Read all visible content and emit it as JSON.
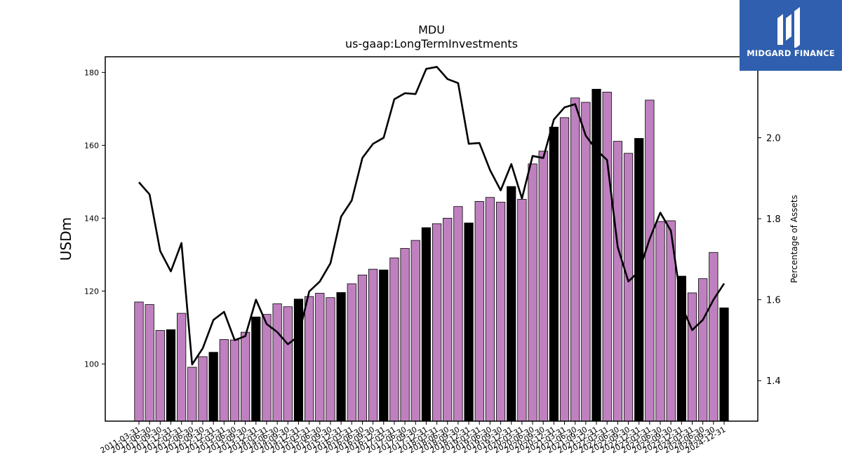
{
  "chart_data": {
    "type": "bar",
    "title": "MDU",
    "subtitle": "us-gaap:LongTermInvestments",
    "ylabel": "USDm",
    "y2label": "Percentage of Assets",
    "ylim": [
      84.3,
      184.3
    ],
    "y2lim": [
      1.3,
      2.2
    ],
    "yticks": [
      100,
      120,
      140,
      160,
      180
    ],
    "y2ticks": [
      1.4,
      1.6,
      1.8,
      2.0
    ],
    "grid": false,
    "colors": {
      "bar_default": "#bf80bf",
      "bar_q4": "#000000",
      "line": "#000000"
    },
    "categories": [
      "2011-03-31",
      "2011-06-30",
      "2011-09-30",
      "2011-12-31",
      "2012-03-31",
      "2012-06-30",
      "2012-09-30",
      "2012-12-31",
      "2013-03-31",
      "2013-06-30",
      "2013-09-30",
      "2013-12-31",
      "2014-03-31",
      "2014-06-30",
      "2014-09-30",
      "2014-12-31",
      "2015-03-31",
      "2015-06-30",
      "2015-09-30",
      "2015-12-31",
      "2016-03-31",
      "2016-06-30",
      "2016-09-30",
      "2016-12-31",
      "2017-03-31",
      "2017-06-30",
      "2017-09-30",
      "2017-12-31",
      "2018-03-31",
      "2018-06-30",
      "2018-09-30",
      "2018-12-31",
      "2019-03-31",
      "2019-06-30",
      "2019-09-30",
      "2019-12-31",
      "2020-03-31",
      "2020-06-30",
      "2020-09-30",
      "2020-12-31",
      "2021-03-31",
      "2021-06-30",
      "2021-09-30",
      "2021-12-31",
      "2022-03-31",
      "2022-06-30",
      "2022-09-30",
      "2022-12-31",
      "2023-03-31",
      "2023-06-30",
      "2023-09-30",
      "2023-12-31",
      "2024-03-31",
      "2024-06-30",
      "2024-09-30",
      "2024-12-31"
    ],
    "series": [
      {
        "type": "bar",
        "axis": "left",
        "values": [
          117.0,
          116.3,
          109.2,
          109.4,
          113.9,
          99.1,
          102.0,
          103.2,
          106.7,
          106.6,
          108.7,
          112.9,
          113.6,
          116.5,
          115.7,
          117.8,
          118.5,
          119.4,
          118.2,
          119.6,
          122.0,
          124.4,
          126.0,
          125.8,
          129.1,
          131.7,
          133.9,
          137.4,
          138.5,
          140.0,
          143.2,
          138.7,
          144.6,
          145.7,
          144.4,
          148.7,
          145.2,
          154.9,
          158.4,
          165.0,
          167.6,
          173.0,
          171.8,
          175.4,
          174.6,
          161.1,
          157.8,
          161.9,
          172.4,
          139.1,
          139.3,
          124.1,
          119.5,
          123.4,
          130.6,
          115.4
        ]
      },
      {
        "type": "line",
        "axis": "right",
        "values": [
          1.89,
          1.86,
          1.72,
          1.67,
          1.74,
          1.44,
          1.48,
          1.55,
          1.57,
          1.5,
          1.51,
          1.6,
          1.54,
          1.52,
          1.49,
          1.51,
          1.62,
          1.645,
          1.69,
          1.805,
          1.845,
          1.95,
          1.985,
          2.0,
          2.095,
          2.11,
          2.108,
          2.17,
          2.175,
          2.145,
          2.135,
          1.985,
          1.987,
          1.92,
          1.87,
          1.935,
          1.85,
          1.955,
          1.95,
          2.045,
          2.075,
          2.083,
          2.005,
          1.97,
          1.945,
          1.73,
          1.645,
          1.67,
          1.75,
          1.815,
          1.77,
          1.585,
          1.525,
          1.55,
          1.6,
          1.64
        ]
      }
    ]
  },
  "logo": {
    "text": "MIDGARD FINANCE",
    "icon": "midgard-logo-icon"
  }
}
